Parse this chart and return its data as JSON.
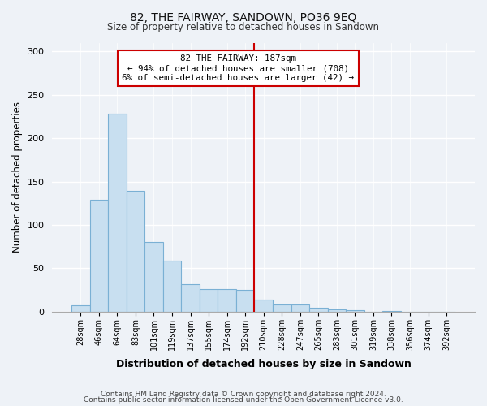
{
  "title": "82, THE FAIRWAY, SANDOWN, PO36 9EQ",
  "subtitle": "Size of property relative to detached houses in Sandown",
  "xlabel": "Distribution of detached houses by size in Sandown",
  "ylabel": "Number of detached properties",
  "bar_labels": [
    "28sqm",
    "46sqm",
    "64sqm",
    "83sqm",
    "101sqm",
    "119sqm",
    "137sqm",
    "155sqm",
    "174sqm",
    "192sqm",
    "210sqm",
    "228sqm",
    "247sqm",
    "265sqm",
    "283sqm",
    "301sqm",
    "319sqm",
    "338sqm",
    "356sqm",
    "374sqm",
    "392sqm"
  ],
  "bar_values": [
    7,
    129,
    228,
    139,
    80,
    59,
    32,
    26,
    26,
    25,
    14,
    8,
    8,
    5,
    3,
    2,
    0,
    1,
    0,
    0,
    0
  ],
  "bar_color": "#c8dff0",
  "bar_edge_color": "#7ab0d4",
  "vline_x": 9.5,
  "vline_color": "#cc0000",
  "annotation_title": "82 THE FAIRWAY: 187sqm",
  "annotation_line1": "← 94% of detached houses are smaller (708)",
  "annotation_line2": "6% of semi-detached houses are larger (42) →",
  "annotation_box_color": "#ffffff",
  "annotation_box_edge": "#cc0000",
  "ylim": [
    0,
    310
  ],
  "yticks": [
    0,
    50,
    100,
    150,
    200,
    250,
    300
  ],
  "footnote1": "Contains HM Land Registry data © Crown copyright and database right 2024.",
  "footnote2": "Contains public sector information licensed under the Open Government Licence v3.0.",
  "background_color": "#eef2f7"
}
